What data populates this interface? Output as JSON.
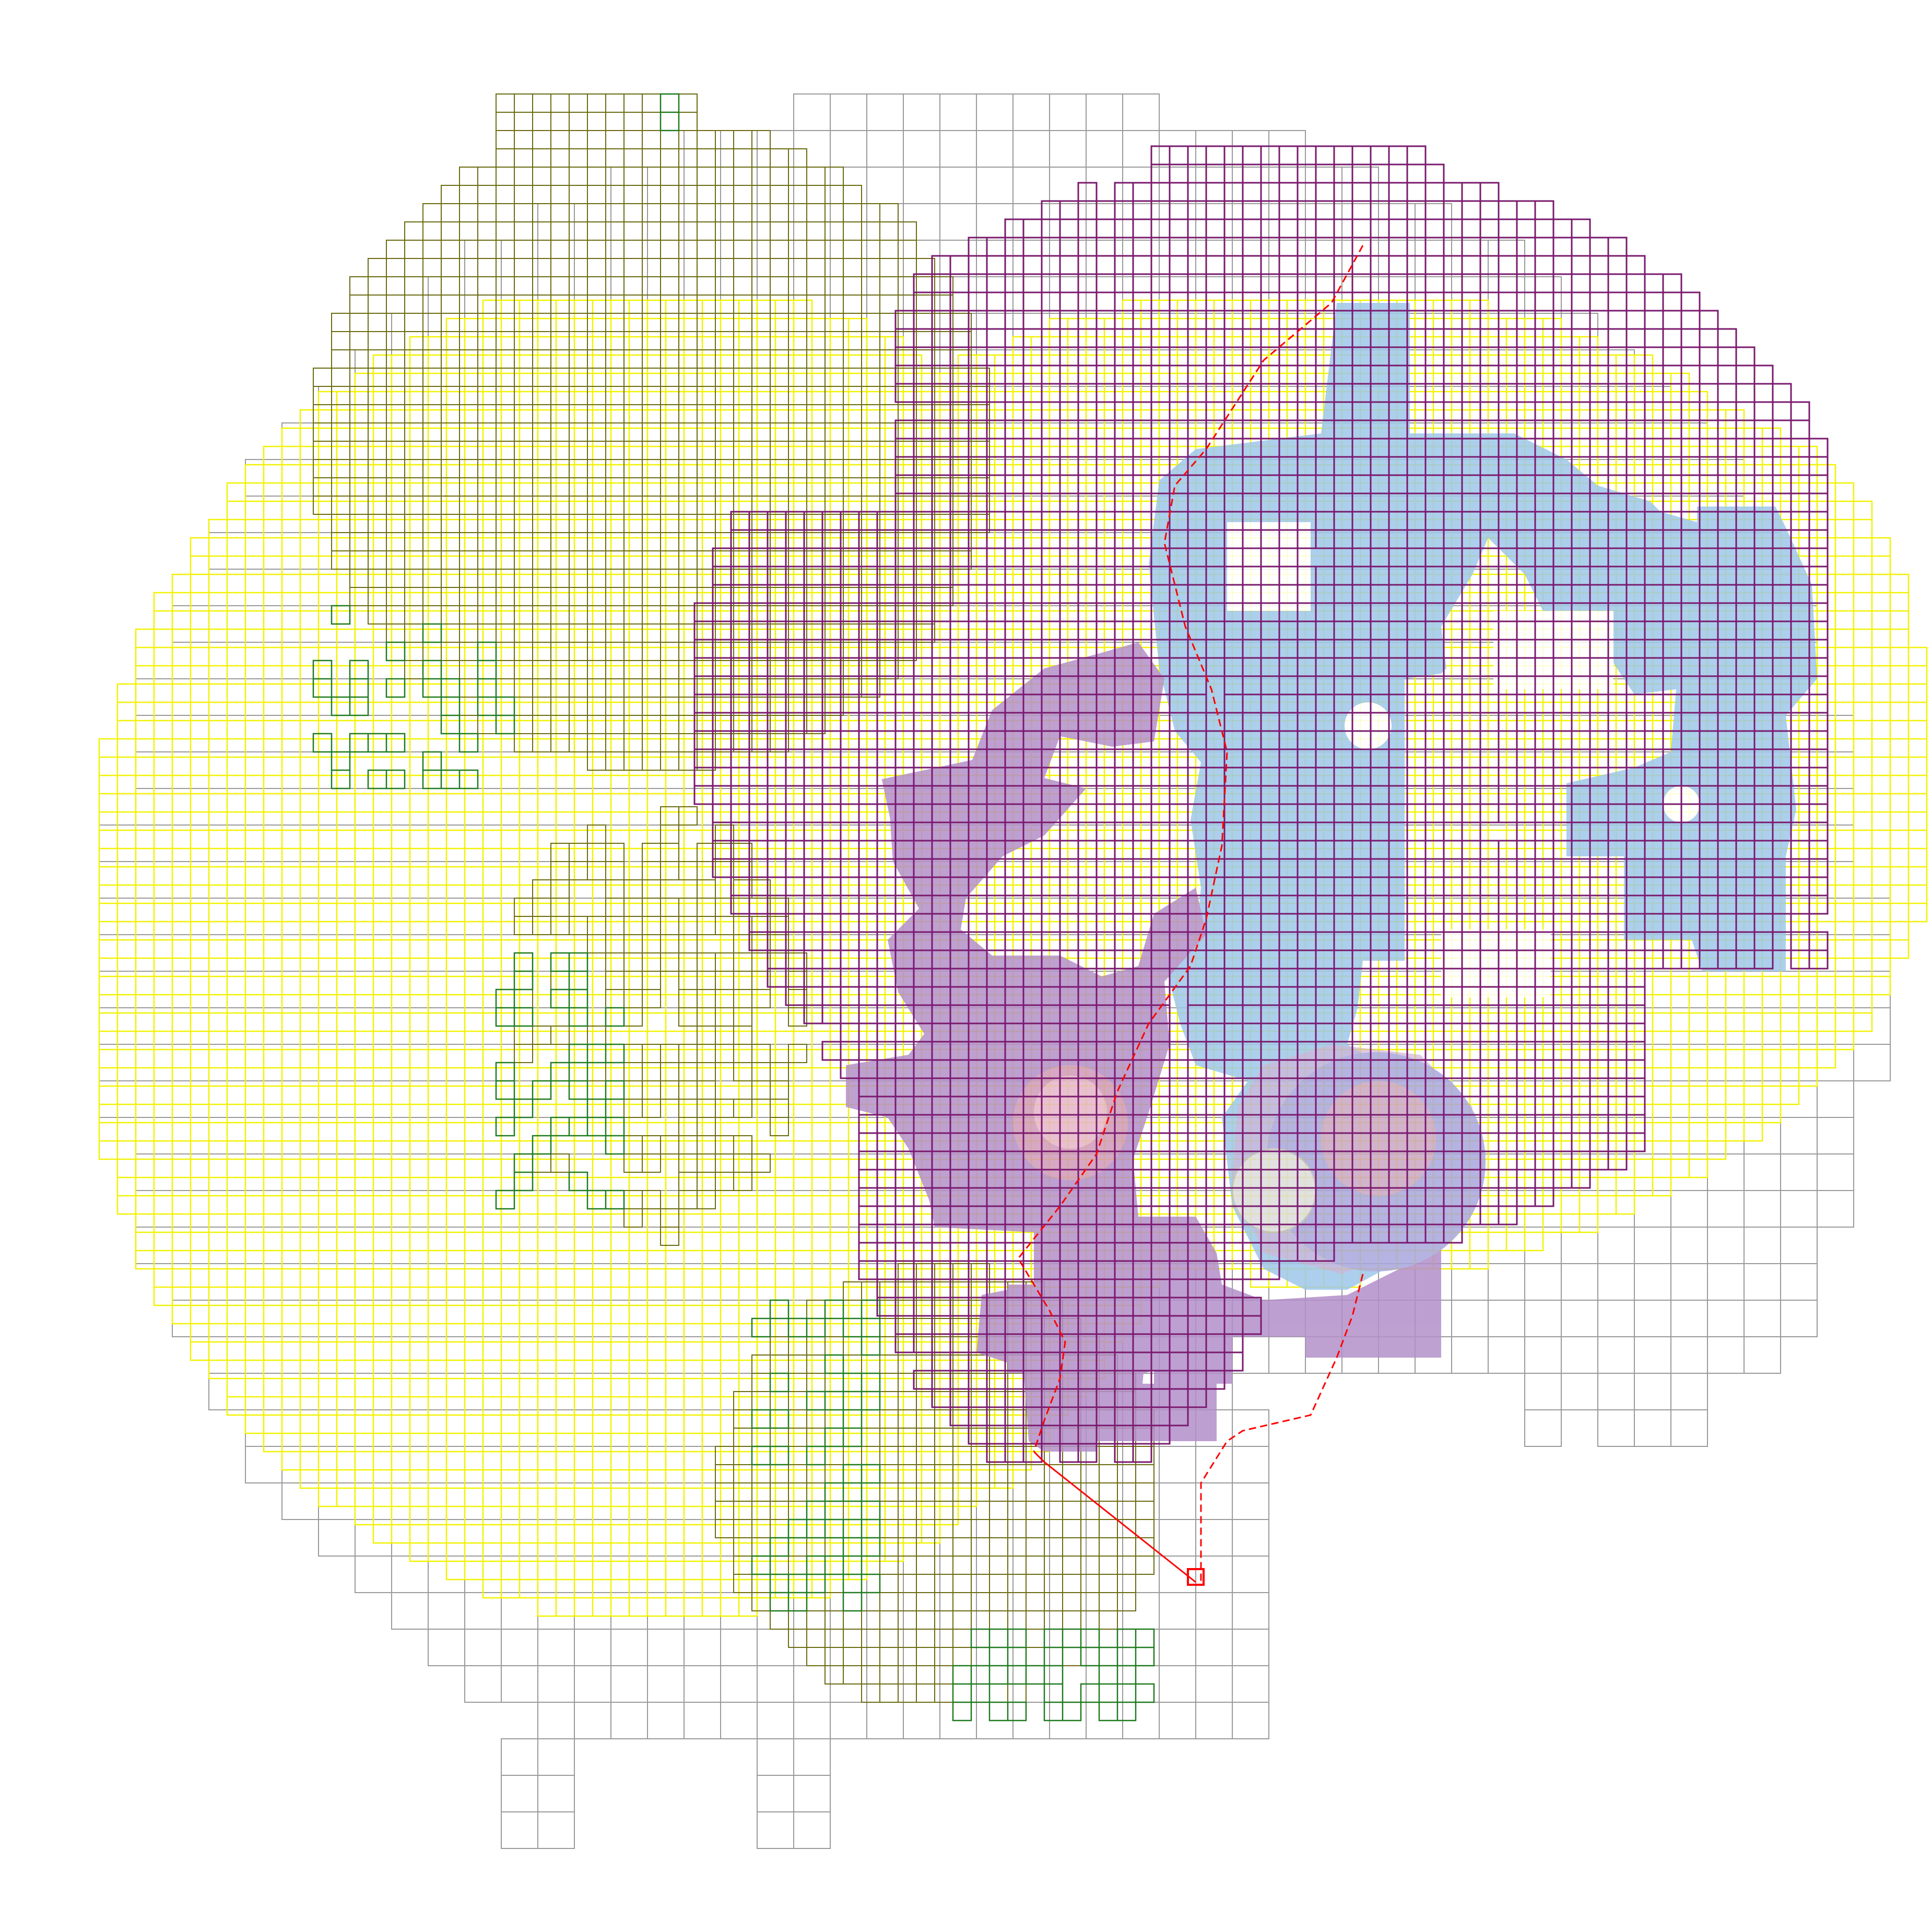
{
  "map": {
    "description_free": true,
    "grid_cell_units": 1,
    "colors": {
      "background": "#ffffff",
      "unexplored_outline": "#9a9a9a",
      "explored_outline": "#f2f200",
      "visited_outline": "#6b6b10",
      "frontier_outline": "#1f7a1f",
      "target_region_outline": "#7a1a6e",
      "floor_blue": "#9ec7ea",
      "floor_purple": "#b38fc9",
      "highlight_pink": "#f3a7a7",
      "path_line": "#ff0000"
    },
    "legend_hidden": true
  }
}
